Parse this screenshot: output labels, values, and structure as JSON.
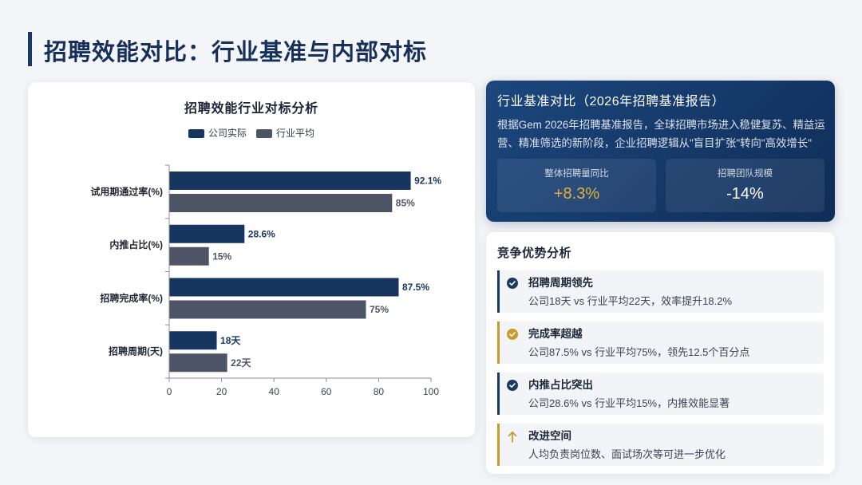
{
  "page": {
    "title": "招聘效能对比：行业基准与内部对标",
    "accent_color": "#1a3a66"
  },
  "chart_data": {
    "type": "bar",
    "orientation": "horizontal",
    "title": "招聘效能行业对标分析",
    "categories": [
      "试用期通过率(%)",
      "内推占比(%)",
      "招聘完成率(%)",
      "招聘周期(天)"
    ],
    "series": [
      {
        "name": "公司实际",
        "color": "#17365f",
        "values": [
          92.1,
          28.6,
          87.5,
          18
        ],
        "data_labels": [
          "92.1%",
          "28.6%",
          "87.5%",
          "18天"
        ]
      },
      {
        "name": "行业平均",
        "color": "#4d5465",
        "values": [
          85,
          15,
          75,
          22
        ],
        "data_labels": [
          "85%",
          "15%",
          "75%",
          "22天"
        ]
      }
    ],
    "xlim": [
      0,
      100
    ],
    "xticks": [
      0,
      20,
      40,
      60,
      80,
      100
    ],
    "legend": "top-center",
    "grid": false
  },
  "benchmark": {
    "title": "行业基准对比（2026年招聘基准报告）",
    "description": "根据Gem 2026年招聘基准报告，全球招聘市场进入稳健复苏、精益运营、精准筛选的新阶段，企业招聘逻辑从\"盲目扩张\"转向\"高效增长\"",
    "stats": [
      {
        "label": "整体招聘量同比",
        "value": "+8.3%",
        "color": "#e6ac40"
      },
      {
        "label": "招聘团队规模",
        "value": "-14%",
        "color": "#ffffff"
      }
    ]
  },
  "advantages": {
    "title": "竞争优势分析",
    "items": [
      {
        "icon": "check-circle-icon",
        "accent": "#1a3a66",
        "title": "招聘周期领先",
        "desc": "公司18天 vs 行业平均22天，效率提升18.2%"
      },
      {
        "icon": "check-circle-icon",
        "accent": "#c99a2e",
        "title": "完成率超越",
        "desc": "公司87.5% vs 行业平均75%，领先12.5个百分点"
      },
      {
        "icon": "check-circle-icon",
        "accent": "#1a3a66",
        "title": "内推占比突出",
        "desc": "公司28.6% vs 行业平均15%，内推效能显著"
      },
      {
        "icon": "arrow-up-icon",
        "accent": "#c99a2e",
        "title": "改进空间",
        "desc": "人均负责岗位数、面试场次等可进一步优化"
      }
    ]
  }
}
